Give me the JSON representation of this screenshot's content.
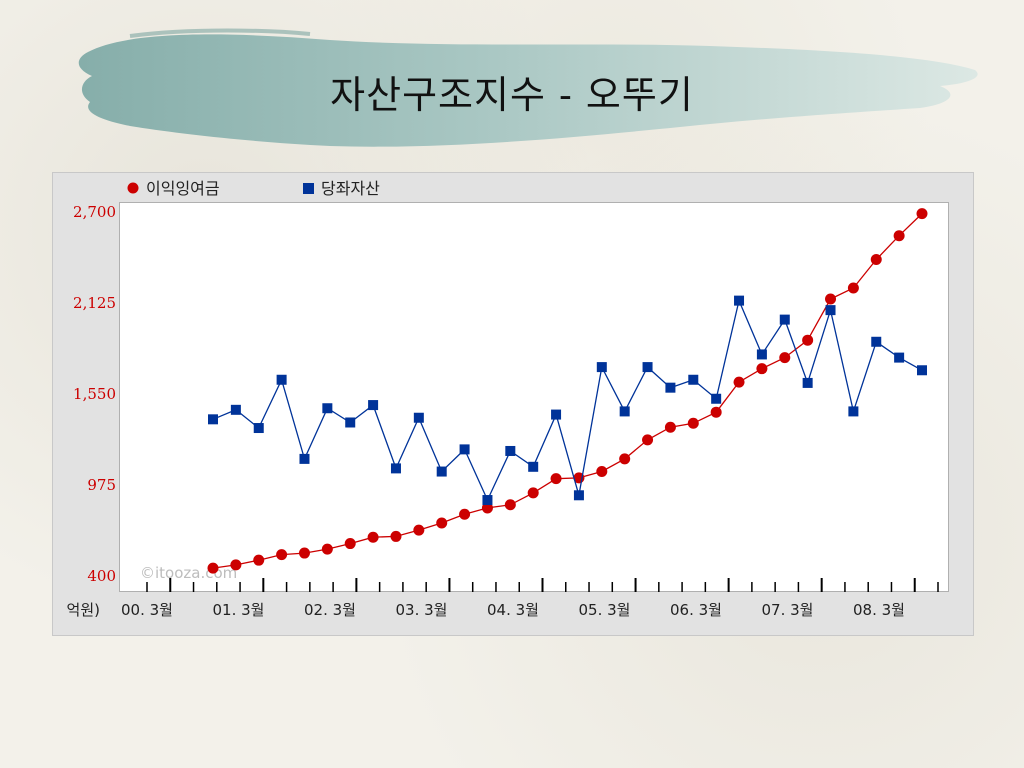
{
  "slide": {
    "title": "자산구조지수 - 오뚜기"
  },
  "chart_data": {
    "type": "line",
    "title": "",
    "unit_label": "억원)",
    "ylim": [
      400,
      2700
    ],
    "y_ticks": [
      400,
      975,
      1550,
      2125,
      2700
    ],
    "y_tick_labels": [
      "400",
      "975",
      "1,550",
      "2,125",
      "2,700"
    ],
    "x_tick_labels": [
      "00. 3월",
      "01. 3월",
      "02. 3월",
      "03. 3월",
      "04. 3월",
      "05. 3월",
      "06. 3월",
      "07. 3월",
      "08. 3월"
    ],
    "watermark": "©itooza.com",
    "legend_position": "top-left",
    "grid": false,
    "series": [
      {
        "name": "이익잉여금",
        "color": "#cc0000",
        "marker": "circle",
        "values": [
          450,
          470,
          500,
          535,
          545,
          570,
          605,
          645,
          650,
          690,
          735,
          790,
          830,
          850,
          925,
          1015,
          1020,
          1060,
          1140,
          1260,
          1340,
          1365,
          1435,
          1625,
          1710,
          1780,
          1890,
          2150,
          2220,
          2400,
          2550,
          2690
        ]
      },
      {
        "name": "당좌자산",
        "color": "#003399",
        "marker": "square",
        "values": [
          1390,
          1450,
          1335,
          1640,
          1140,
          1460,
          1370,
          1480,
          1080,
          1400,
          1060,
          1200,
          880,
          1190,
          1090,
          1420,
          910,
          1720,
          1440,
          1720,
          1590,
          1640,
          1520,
          2140,
          1800,
          2020,
          1620,
          2080,
          1440,
          1880,
          1780,
          1700
        ]
      }
    ]
  }
}
